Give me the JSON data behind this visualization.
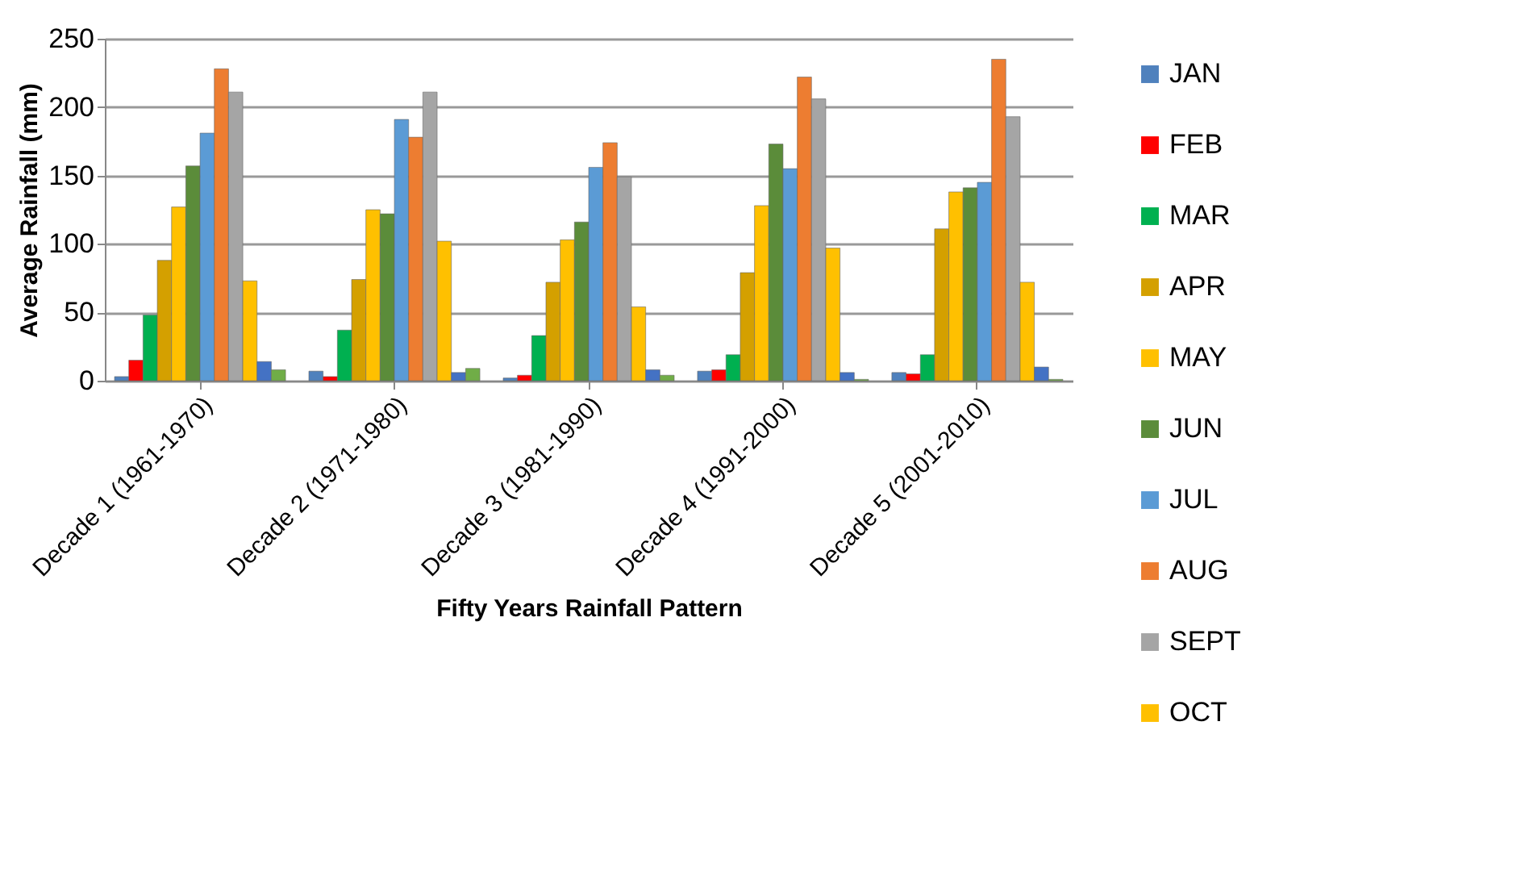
{
  "chart_data": {
    "type": "bar",
    "xlabel": "Fifty Years Rainfall Pattern",
    "ylabel": "Average Rainfall (mm)",
    "categories": [
      "Decade 1 (1961-1970)",
      "Decade 2 (1971-1980)",
      "Decade 3 (1981-1990)",
      "Decade 4 (1991-2000)",
      "Decade 5 (2001-2010)"
    ],
    "series": [
      {
        "name": "JAN",
        "color": "#4f81bd",
        "values": [
          3,
          7,
          2,
          7,
          6
        ]
      },
      {
        "name": "FEB",
        "color": "#ff0000",
        "values": [
          15,
          3,
          4,
          8,
          5
        ]
      },
      {
        "name": "MAR",
        "color": "#00b050",
        "values": [
          48,
          37,
          33,
          19,
          19
        ]
      },
      {
        "name": "APR",
        "color": "#d4a000",
        "values": [
          88,
          74,
          72,
          79,
          111
        ]
      },
      {
        "name": "MAY",
        "color": "#ffc000",
        "values": [
          127,
          125,
          103,
          128,
          138
        ]
      },
      {
        "name": "JUN",
        "color": "#5b8c3a",
        "values": [
          157,
          122,
          116,
          173,
          141
        ]
      },
      {
        "name": "JUL",
        "color": "#5b9bd5",
        "values": [
          181,
          191,
          156,
          155,
          145
        ]
      },
      {
        "name": "AUG",
        "color": "#ed7d31",
        "values": [
          228,
          178,
          174,
          222,
          235
        ]
      },
      {
        "name": "SEPT",
        "color": "#a5a5a5",
        "values": [
          211,
          211,
          149,
          206,
          193
        ]
      },
      {
        "name": "OCT",
        "color": "#ffc000",
        "values": [
          73,
          102,
          54,
          97,
          72
        ]
      },
      {
        "color": "#4472c4",
        "values": [
          14,
          6,
          8,
          6,
          10
        ]
      },
      {
        "color": "#70ad47",
        "values": [
          8,
          9,
          4,
          1,
          1
        ]
      }
    ],
    "ylim": [
      0,
      250
    ],
    "yticks": [
      0,
      50,
      100,
      150,
      200,
      250
    ],
    "grid": "y",
    "legend": "right"
  }
}
